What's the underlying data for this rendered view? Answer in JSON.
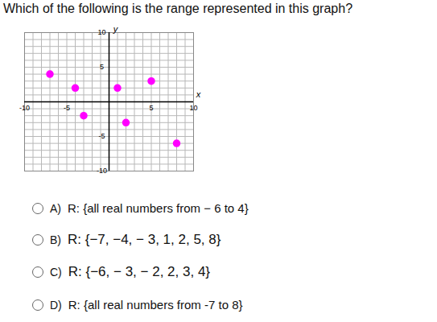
{
  "question": "Which of the following is the range represented in this graph?",
  "chart_data": {
    "type": "scatter",
    "x": [
      -7,
      -4,
      -3,
      1,
      2,
      5,
      8
    ],
    "values": [
      4,
      2,
      -2,
      2,
      -3,
      3,
      -6
    ],
    "color": "#ff00ff",
    "marker": "circle",
    "xlabel": "x",
    "ylabel": "y",
    "xlim": [
      -10,
      10
    ],
    "ylim": [
      -10,
      10
    ],
    "xticks": [
      -10,
      -5,
      5,
      10
    ],
    "yticks": [
      -10,
      -5,
      5,
      10
    ],
    "grid": true
  },
  "options": [
    {
      "letter": "A)",
      "text": "R: {all real numbers from − 6 to 4}"
    },
    {
      "letter": "B)",
      "text": "R: {−7,  −4,  − 3, 1, 2, 5, 8}"
    },
    {
      "letter": "C)",
      "text": "R: {−6,  − 3,  − 2, 2, 3, 4}"
    },
    {
      "letter": "D)",
      "text": "R: {all real numbers from -7 to 8}"
    }
  ]
}
